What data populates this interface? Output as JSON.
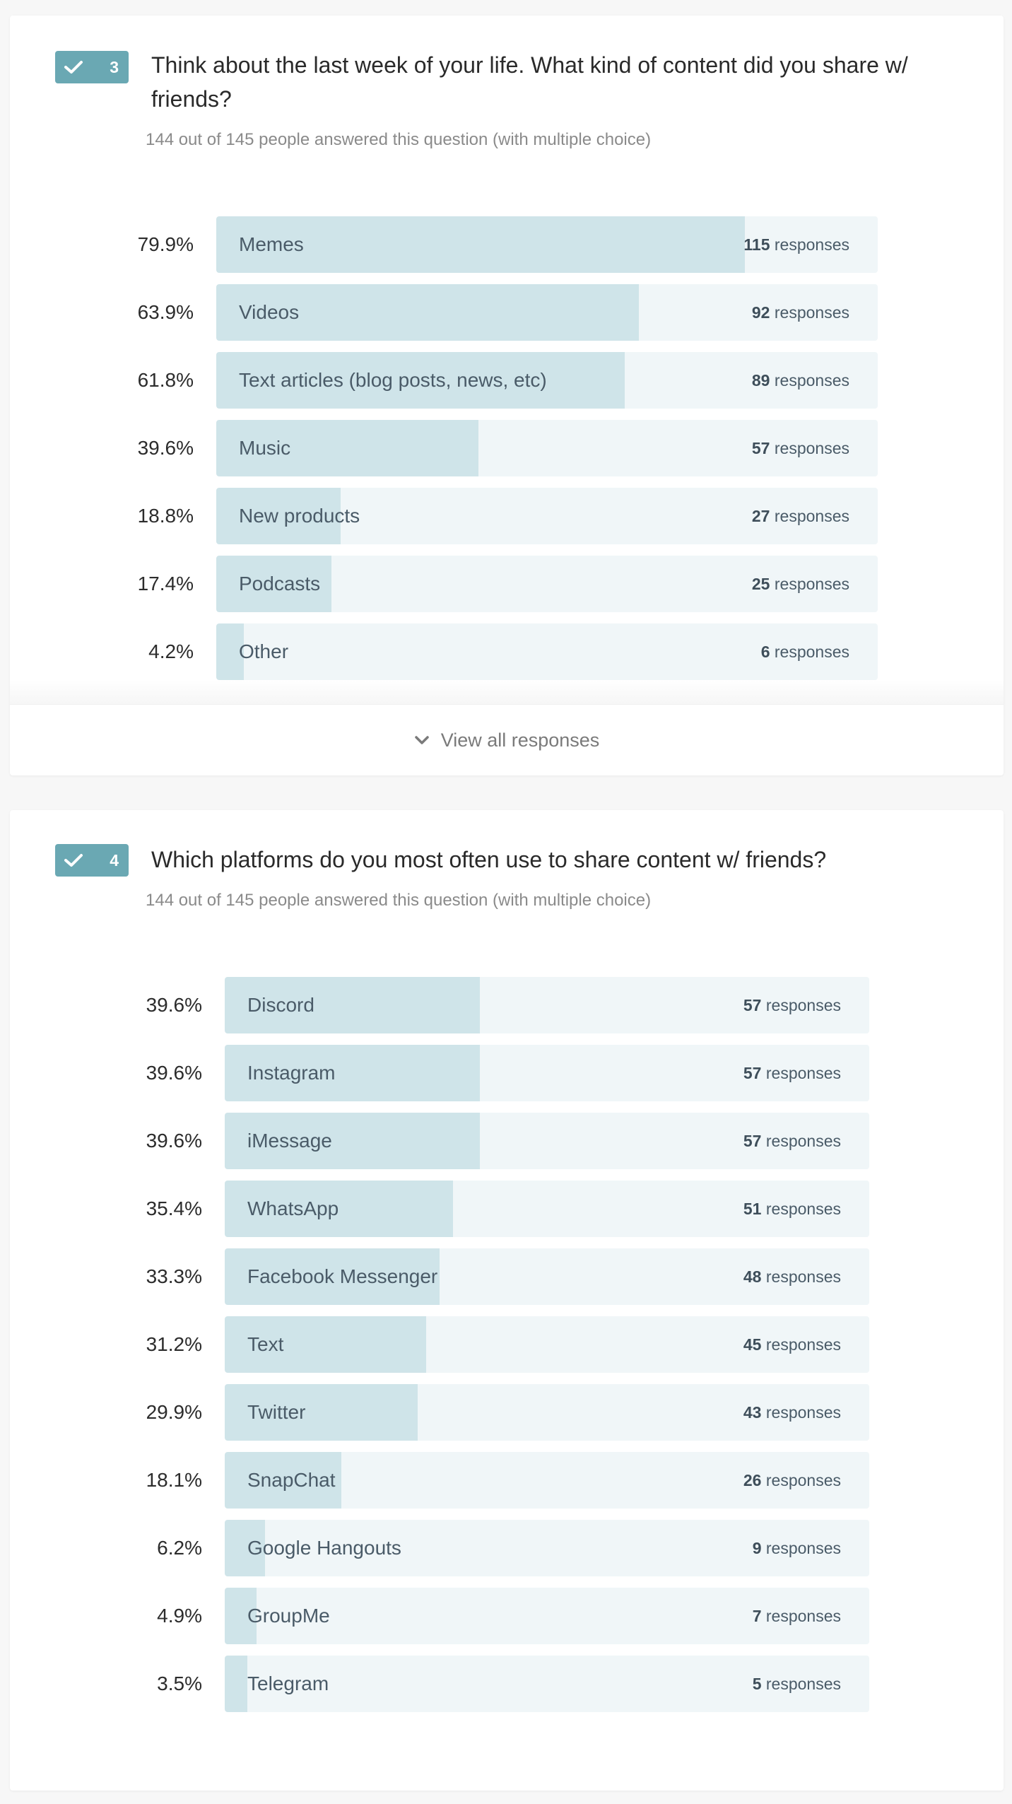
{
  "theme": {
    "accent": "#6aa8b3",
    "bar_fill": "#cfe4e9",
    "bar_track": "#f0f6f8"
  },
  "questions": [
    {
      "number": "3",
      "icon": "check-icon",
      "title_line1": "Think about the last week of your life. What kind of content did you share w/",
      "title_line2": "friends?",
      "subtitle": "144 out of 145 people answered this question (with multiple choice)",
      "response_suffix": "responses",
      "options": [
        {
          "label": "Memes",
          "percent": "79.9%",
          "count": "115",
          "share": 0.799
        },
        {
          "label": "Videos",
          "percent": "63.9%",
          "count": "92",
          "share": 0.639
        },
        {
          "label": "Text articles (blog posts, news, etc)",
          "percent": "61.8%",
          "count": "89",
          "share": 0.618
        },
        {
          "label": "Music",
          "percent": "39.6%",
          "count": "57",
          "share": 0.396
        },
        {
          "label": "New products",
          "percent": "18.8%",
          "count": "27",
          "share": 0.188
        },
        {
          "label": "Podcasts",
          "percent": "17.4%",
          "count": "25",
          "share": 0.174
        },
        {
          "label": "Other",
          "percent": "4.2%",
          "count": "6",
          "share": 0.042
        }
      ],
      "view_all_label": "View all responses"
    },
    {
      "number": "4",
      "icon": "check-icon",
      "title_line1": "Which platforms do you most often use to share content w/ friends?",
      "subtitle": "144 out of 145 people answered this question (with multiple choice)",
      "response_suffix": "responses",
      "options": [
        {
          "label": "Discord",
          "percent": "39.6%",
          "count": "57",
          "share": 0.396
        },
        {
          "label": "Instagram",
          "percent": "39.6%",
          "count": "57",
          "share": 0.396
        },
        {
          "label": "iMessage",
          "percent": "39.6%",
          "count": "57",
          "share": 0.396
        },
        {
          "label": "WhatsApp",
          "percent": "35.4%",
          "count": "51",
          "share": 0.354
        },
        {
          "label": "Facebook Messenger",
          "percent": "33.3%",
          "count": "48",
          "share": 0.333
        },
        {
          "label": "Text",
          "percent": "31.2%",
          "count": "45",
          "share": 0.312
        },
        {
          "label": "Twitter",
          "percent": "29.9%",
          "count": "43",
          "share": 0.299
        },
        {
          "label": "SnapChat",
          "percent": "18.1%",
          "count": "26",
          "share": 0.181
        },
        {
          "label": "Google Hangouts",
          "percent": "6.2%",
          "count": "9",
          "share": 0.062
        },
        {
          "label": "GroupMe",
          "percent": "4.9%",
          "count": "7",
          "share": 0.049
        },
        {
          "label": "Telegram",
          "percent": "3.5%",
          "count": "5",
          "share": 0.035
        }
      ]
    }
  ]
}
